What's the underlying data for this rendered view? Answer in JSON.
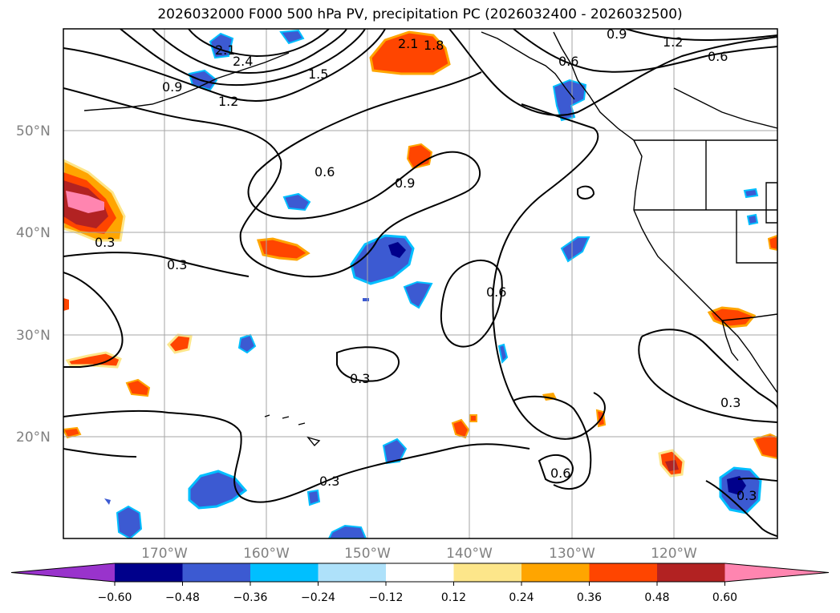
{
  "title": "2026032000 F000 500 hPa PV, precipitation PC (2026032400 - 2026032500)",
  "lat_labels": [
    "50°N",
    "40°N",
    "30°N",
    "20°N"
  ],
  "lon_labels": [
    "170°W",
    "160°W",
    "150°W",
    "140°W",
    "130°W",
    "120°W"
  ],
  "contour_labels": [
    "2.1",
    "2.4",
    "1.5",
    "1.8",
    "2.1",
    "0.9",
    "1.2",
    "0.6",
    "0.9",
    "1.2",
    "0.6",
    "0.6",
    "0.9",
    "0.3",
    "0.3",
    "0.6",
    "0.3",
    "0.3",
    "0.3",
    "0.6",
    "0.3"
  ],
  "colorbar": {
    "ticks": [
      "−0.60",
      "−0.48",
      "−0.36",
      "−0.24",
      "−0.12",
      "0.12",
      "0.24",
      "0.36",
      "0.48",
      "0.60"
    ],
    "colors": [
      "#9933cc",
      "#00008b",
      "#3c5ad2",
      "#00bfff",
      "#aee1fa",
      "#ffffff",
      "#fde68a",
      "#ffa500",
      "#ff4500",
      "#b22222",
      "#ff85b0"
    ]
  }
}
